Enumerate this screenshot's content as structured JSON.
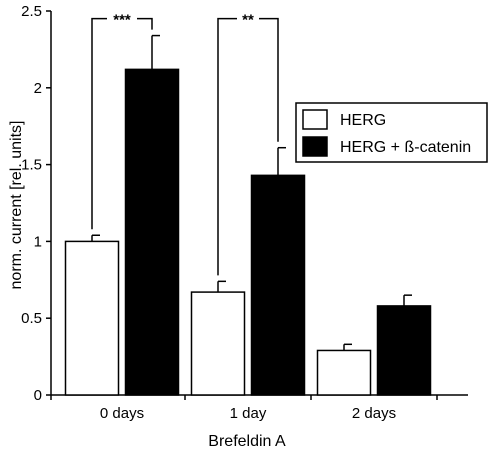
{
  "chart_data": {
    "type": "bar",
    "title": "",
    "xlabel": "Brefeldin A",
    "ylabel": "norm. current [rel. units]",
    "ylim": [
      0,
      2.5
    ],
    "yticks": [
      0,
      0.5,
      1,
      1.5,
      2,
      2.5
    ],
    "ytick_labels": [
      "0",
      "0.5",
      "1",
      "1.5",
      "2",
      "2.5"
    ],
    "categories": [
      "0 days",
      "1 day",
      "2 days"
    ],
    "series": [
      {
        "name": "HERG",
        "color": "#ffffff",
        "values": [
          1.0,
          0.67,
          0.29
        ],
        "errors": [
          0.04,
          0.07,
          0.04
        ]
      },
      {
        "name": "HERG + ß-catenin",
        "color": "#000000",
        "values": [
          2.12,
          1.43,
          0.58
        ],
        "errors": [
          0.22,
          0.18,
          0.07
        ]
      }
    ],
    "significance": [
      {
        "category": "0 days",
        "label": "***"
      },
      {
        "category": "1 day",
        "label": "**"
      }
    ],
    "legend_position": "right",
    "grid": false
  }
}
